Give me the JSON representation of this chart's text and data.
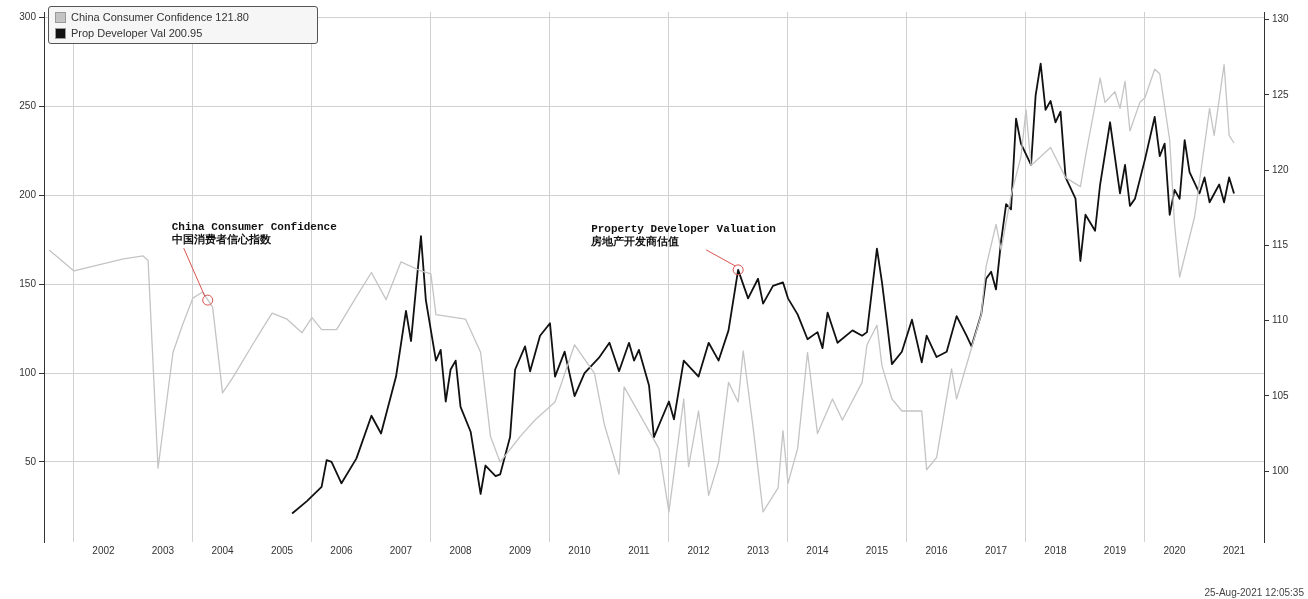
{
  "chart_data": {
    "type": "line",
    "xlim": [
      "2001-07",
      "2022-01"
    ],
    "xticks": [
      {
        "value": "2002-01",
        "label": null
      },
      {
        "value": "2002-07",
        "label": "2002"
      },
      {
        "value": "2003-07",
        "label": "2003"
      },
      {
        "value": "2004-01",
        "label": null
      },
      {
        "value": "2004-07",
        "label": "2004"
      },
      {
        "value": "2005-07",
        "label": "2005"
      },
      {
        "value": "2006-01",
        "label": null
      },
      {
        "value": "2006-07",
        "label": "2006"
      },
      {
        "value": "2007-07",
        "label": "2007"
      },
      {
        "value": "2008-01",
        "label": null
      },
      {
        "value": "2008-07",
        "label": "2008"
      },
      {
        "value": "2009-07",
        "label": "2009"
      },
      {
        "value": "2010-01",
        "label": null
      },
      {
        "value": "2010-07",
        "label": "2010"
      },
      {
        "value": "2011-07",
        "label": "2011"
      },
      {
        "value": "2012-01",
        "label": null
      },
      {
        "value": "2012-07",
        "label": "2012"
      },
      {
        "value": "2013-07",
        "label": "2013"
      },
      {
        "value": "2014-01",
        "label": null
      },
      {
        "value": "2014-07",
        "label": "2014"
      },
      {
        "value": "2015-07",
        "label": "2015"
      },
      {
        "value": "2016-01",
        "label": null
      },
      {
        "value": "2016-07",
        "label": "2016"
      },
      {
        "value": "2017-07",
        "label": "2017"
      },
      {
        "value": "2018-01",
        "label": null
      },
      {
        "value": "2018-07",
        "label": "2018"
      },
      {
        "value": "2019-07",
        "label": "2019"
      },
      {
        "value": "2020-01",
        "label": null
      },
      {
        "value": "2020-07",
        "label": "2020"
      },
      {
        "value": "2021-07",
        "label": "2021"
      }
    ],
    "ylim": [
      5,
      303
    ],
    "yticks": [
      50,
      100,
      150,
      200,
      250,
      300
    ],
    "y2lim": [
      95.3,
      130.5
    ],
    "y2ticks": [
      100,
      105,
      110,
      115,
      120,
      125,
      130
    ],
    "grid": true,
    "legend": "top left",
    "annotations": [
      {
        "text": "China Consumer Confidence\n中国消费者信心指数",
        "x": "2004-04",
        "y": 141
      },
      {
        "text": "Property Developer Valuation\n房地产开发商估值",
        "x": "2013-03",
        "y": 158
      },
      "25-Aug-2021 12:05:35"
    ],
    "series": [
      {
        "name": "China Consumer Confidence 121.80",
        "color": "#c4c4c4",
        "axis": "y2",
        "x": [
          "2001-08",
          "2002-01",
          "2002-11",
          "2003-03",
          "2003-04",
          "2003-06",
          "2003-09",
          "2003-11",
          "2004-01",
          "2004-03",
          "2004-05",
          "2004-07",
          "2004-09",
          "2005-01",
          "2005-05",
          "2005-08",
          "2005-11",
          "2006-01",
          "2006-03",
          "2006-06",
          "2006-10",
          "2007-01",
          "2007-04",
          "2007-07",
          "2007-11",
          "2008-01",
          "2008-02",
          "2008-08",
          "2008-11",
          "2009-01",
          "2009-03",
          "2009-07",
          "2009-10",
          "2010-02",
          "2010-06",
          "2010-10",
          "2010-12",
          "2011-03",
          "2011-04",
          "2011-11",
          "2012-01",
          "2012-04",
          "2012-05",
          "2012-07",
          "2012-09",
          "2012-11",
          "2013-01",
          "2013-03",
          "2013-04",
          "2013-06",
          "2013-08",
          "2013-11",
          "2013-12",
          "2014-01",
          "2014-03",
          "2014-05",
          "2014-07",
          "2014-10",
          "2014-12",
          "2015-04",
          "2015-05",
          "2015-07",
          "2015-08",
          "2015-10",
          "2015-12",
          "2016-04",
          "2016-05",
          "2016-07",
          "2016-10",
          "2016-11",
          "2017-02",
          "2017-04",
          "2017-05",
          "2017-07",
          "2017-08",
          "2017-10",
          "2017-12",
          "2018-01",
          "2018-02",
          "2018-06",
          "2018-09",
          "2018-12",
          "2019-01",
          "2019-04",
          "2019-05",
          "2019-07",
          "2019-08",
          "2019-09",
          "2019-10",
          "2019-12",
          "2020-01",
          "2020-03",
          "2020-04",
          "2020-06",
          "2020-07",
          "2020-08",
          "2020-11",
          "2021-02",
          "2021-03",
          "2021-05",
          "2021-06",
          "2021-07"
        ],
        "values": [
          114.7,
          113.3,
          114.1,
          114.3,
          114.0,
          100.2,
          107.9,
          109.8,
          111.5,
          111.9,
          110.9,
          105.2,
          106.2,
          108.4,
          110.5,
          110.1,
          109.2,
          110.2,
          109.4,
          109.4,
          111.6,
          113.2,
          111.4,
          113.9,
          113.3,
          113.1,
          110.4,
          110.1,
          107.9,
          102.3,
          100.6,
          102.3,
          103.4,
          104.6,
          108.4,
          106.5,
          103.1,
          99.8,
          105.6,
          101.5,
          97.3,
          104.8,
          100.3,
          104.0,
          98.4,
          100.6,
          105.9,
          104.6,
          108.0,
          102.9,
          97.3,
          98.9,
          102.7,
          99.2,
          101.5,
          107.9,
          102.5,
          104.8,
          103.4,
          105.9,
          108.4,
          109.7,
          107.0,
          104.8,
          104.0,
          104.0,
          100.1,
          100.9,
          106.8,
          104.8,
          108.2,
          110.4,
          113.6,
          116.4,
          114.7,
          118.3,
          120.9,
          124.0,
          120.3,
          121.5,
          119.5,
          118.9,
          120.9,
          126.1,
          124.5,
          125.2,
          124.1,
          125.9,
          122.6,
          124.5,
          124.8,
          126.7,
          126.4,
          122.0,
          116.4,
          112.9,
          116.9,
          124.1,
          122.3,
          127.0,
          122.3,
          121.8
        ]
      },
      {
        "name": "Prop Developer Val 200.95",
        "color": "#111111",
        "x": [
          "2005-09",
          "2005-12",
          "2006-03",
          "2006-04",
          "2006-05",
          "2006-07",
          "2006-10",
          "2007-01",
          "2007-03",
          "2007-06",
          "2007-08",
          "2007-09",
          "2007-10",
          "2007-11",
          "2007-12",
          "2008-02",
          "2008-03",
          "2008-04",
          "2008-05",
          "2008-06",
          "2008-07",
          "2008-09",
          "2008-11",
          "2008-12",
          "2009-02",
          "2009-03",
          "2009-05",
          "2009-06",
          "2009-08",
          "2009-09",
          "2009-11",
          "2010-01",
          "2010-02",
          "2010-04",
          "2010-06",
          "2010-08",
          "2010-11",
          "2011-01",
          "2011-03",
          "2011-05",
          "2011-06",
          "2011-07",
          "2011-09",
          "2011-10",
          "2012-01",
          "2012-02",
          "2012-04",
          "2012-07",
          "2012-09",
          "2012-11",
          "2013-01",
          "2013-03",
          "2013-05",
          "2013-07",
          "2013-08",
          "2013-10",
          "2013-12",
          "2014-01",
          "2014-03",
          "2014-05",
          "2014-07",
          "2014-08",
          "2014-09",
          "2014-11",
          "2015-02",
          "2015-04",
          "2015-05",
          "2015-07",
          "2015-08",
          "2015-09",
          "2015-10",
          "2015-12",
          "2016-02",
          "2016-04",
          "2016-05",
          "2016-07",
          "2016-09",
          "2016-11",
          "2017-01",
          "2017-02",
          "2017-04",
          "2017-05",
          "2017-06",
          "2017-07",
          "2017-08",
          "2017-09",
          "2017-10",
          "2017-11",
          "2017-12",
          "2018-02",
          "2018-03",
          "2018-04",
          "2018-05",
          "2018-06",
          "2018-07",
          "2018-08",
          "2018-09",
          "2018-11",
          "2018-12",
          "2019-01",
          "2019-03",
          "2019-04",
          "2019-06",
          "2019-08",
          "2019-09",
          "2019-10",
          "2019-11",
          "2020-01",
          "2020-03",
          "2020-04",
          "2020-05",
          "2020-06",
          "2020-07",
          "2020-08",
          "2020-09",
          "2020-10",
          "2020-12",
          "2021-01",
          "2021-02",
          "2021-04",
          "2021-05",
          "2021-06",
          "2021-07"
        ],
        "values": [
          21,
          28,
          36,
          51,
          50,
          38,
          52,
          76,
          66,
          98,
          135,
          118,
          147,
          177,
          141,
          107,
          113,
          84,
          102,
          107,
          81,
          67,
          32,
          48,
          42,
          43,
          64,
          102,
          115,
          101,
          121,
          128,
          98,
          112,
          87,
          100,
          109,
          117,
          101,
          117,
          107,
          113,
          93,
          64,
          84,
          74,
          107,
          98,
          117,
          107,
          124,
          158,
          142,
          153,
          139,
          149,
          151,
          142,
          133,
          119,
          123,
          114,
          134,
          117,
          124,
          121,
          123,
          170,
          151,
          128,
          105,
          112,
          130,
          106,
          121,
          109,
          112,
          132,
          121,
          115,
          133,
          153,
          157,
          147,
          174,
          195,
          192,
          243,
          229,
          217,
          256,
          274,
          248,
          253,
          241,
          247,
          210,
          198,
          163,
          189,
          180,
          206,
          241,
          201,
          217,
          194,
          198,
          220,
          244,
          222,
          229,
          189,
          203,
          198,
          231,
          213,
          201,
          210,
          196,
          206,
          196,
          210,
          200.95
        ]
      }
    ]
  }
}
